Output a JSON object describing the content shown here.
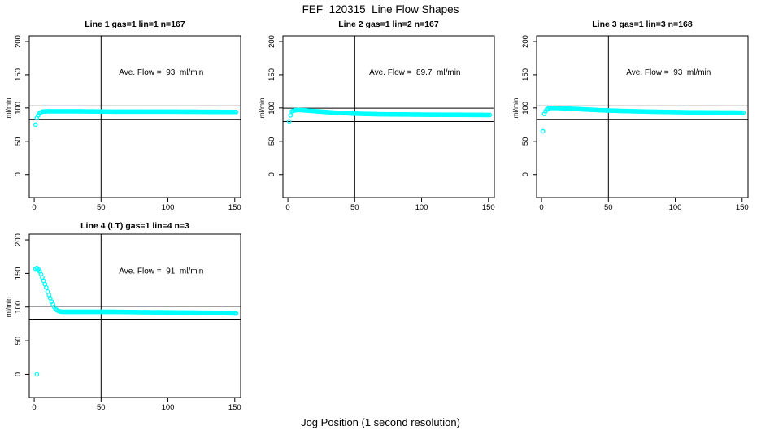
{
  "title": "FEF_120315  Line Flow Shapes",
  "xlabel": "Jog Position (1 second resolution)",
  "colors": {
    "point": "#00ffff",
    "axis": "#000000",
    "background": "#ffffff"
  },
  "chart_data": [
    {
      "type": "scatter",
      "title": "Line 1 gas=1 lin=1 n=167",
      "annotation": "Ave. Flow =  93  ml/min",
      "ave_flow_ml_min": 93,
      "ylabel": "ml/min",
      "x_ticks": [
        0,
        50,
        100,
        150
      ],
      "y_ticks": [
        0,
        50,
        100,
        150,
        200
      ],
      "xlim": [
        -3.7,
        154.4
      ],
      "ylim": [
        -34.5,
        208.5
      ],
      "vline_x": 50,
      "hlines": [
        103,
        83
      ],
      "outliers": [
        [
          1,
          75
        ]
      ],
      "curve": [
        [
          2,
          85
        ],
        [
          3,
          89
        ],
        [
          4,
          92
        ],
        [
          5,
          93.5
        ],
        [
          6,
          94.5
        ],
        [
          10,
          95
        ],
        [
          30,
          95
        ],
        [
          60,
          94.5
        ],
        [
          100,
          94.5
        ],
        [
          151,
          94
        ]
      ],
      "x_end": 151
    },
    {
      "type": "scatter",
      "title": "Line 2 gas=1 lin=2 n=167",
      "annotation": "Ave. Flow =  89.7  ml/min",
      "ave_flow_ml_min": 89.7,
      "ylabel": "ml/min",
      "x_ticks": [
        0,
        50,
        100,
        150
      ],
      "y_ticks": [
        0,
        50,
        100,
        150,
        200
      ],
      "xlim": [
        -3.7,
        154.4
      ],
      "ylim": [
        -34.5,
        208.5
      ],
      "vline_x": 50,
      "hlines": [
        99.7,
        79.7
      ],
      "outliers": [
        [
          1,
          80
        ]
      ],
      "curve": [
        [
          2,
          89
        ],
        [
          3,
          95
        ],
        [
          5,
          96.5
        ],
        [
          8,
          97
        ],
        [
          15,
          96
        ],
        [
          25,
          94.5
        ],
        [
          35,
          93
        ],
        [
          50,
          91.5
        ],
        [
          70,
          90.5
        ],
        [
          100,
          90
        ],
        [
          151,
          89.5
        ]
      ],
      "x_end": 151
    },
    {
      "type": "scatter",
      "title": "Line 3 gas=1 lin=3 n=168",
      "annotation": "Ave. Flow =  93  ml/min",
      "ave_flow_ml_min": 93,
      "ylabel": "ml/min",
      "x_ticks": [
        0,
        50,
        100,
        150
      ],
      "y_ticks": [
        0,
        50,
        100,
        150,
        200
      ],
      "xlim": [
        -3.7,
        154.4
      ],
      "ylim": [
        -34.5,
        208.5
      ],
      "vline_x": 50,
      "hlines": [
        103,
        83
      ],
      "outliers": [
        [
          1,
          65
        ]
      ],
      "curve": [
        [
          2,
          91
        ],
        [
          3,
          95
        ],
        [
          4,
          98
        ],
        [
          6,
          100
        ],
        [
          12,
          100
        ],
        [
          20,
          99
        ],
        [
          30,
          98
        ],
        [
          45,
          96.5
        ],
        [
          60,
          95.5
        ],
        [
          80,
          94.5
        ],
        [
          110,
          93.5
        ],
        [
          151,
          93
        ]
      ],
      "x_end": 151
    },
    {
      "type": "scatter",
      "title": "Line 4 (LT) gas=1 lin=4 n=3",
      "annotation": "Ave. Flow =  91  ml/min",
      "ave_flow_ml_min": 91,
      "ylabel": "ml/min",
      "x_ticks": [
        0,
        50,
        100,
        150
      ],
      "y_ticks": [
        0,
        50,
        100,
        150,
        200
      ],
      "xlim": [
        -3.7,
        154.4
      ],
      "ylim": [
        -34.5,
        208.5
      ],
      "vline_x": 50,
      "hlines": [
        101,
        81
      ],
      "outliers": [
        [
          2,
          0
        ]
      ],
      "curve": [
        [
          1,
          157
        ],
        [
          2,
          158
        ],
        [
          3,
          156
        ],
        [
          4,
          153
        ],
        [
          5,
          149
        ],
        [
          6,
          144
        ],
        [
          7,
          139
        ],
        [
          8,
          134
        ],
        [
          9,
          129
        ],
        [
          10,
          123
        ],
        [
          11,
          118
        ],
        [
          12,
          113
        ],
        [
          13,
          108
        ],
        [
          14,
          104
        ],
        [
          15,
          100
        ],
        [
          16,
          97
        ],
        [
          17,
          95.5
        ],
        [
          18,
          94.5
        ],
        [
          19,
          93.5
        ],
        [
          21,
          93
        ],
        [
          40,
          93
        ],
        [
          60,
          93
        ],
        [
          80,
          92.5
        ],
        [
          110,
          92
        ],
        [
          140,
          91.5
        ],
        [
          151,
          90.5
        ]
      ],
      "x_end": 151
    }
  ]
}
